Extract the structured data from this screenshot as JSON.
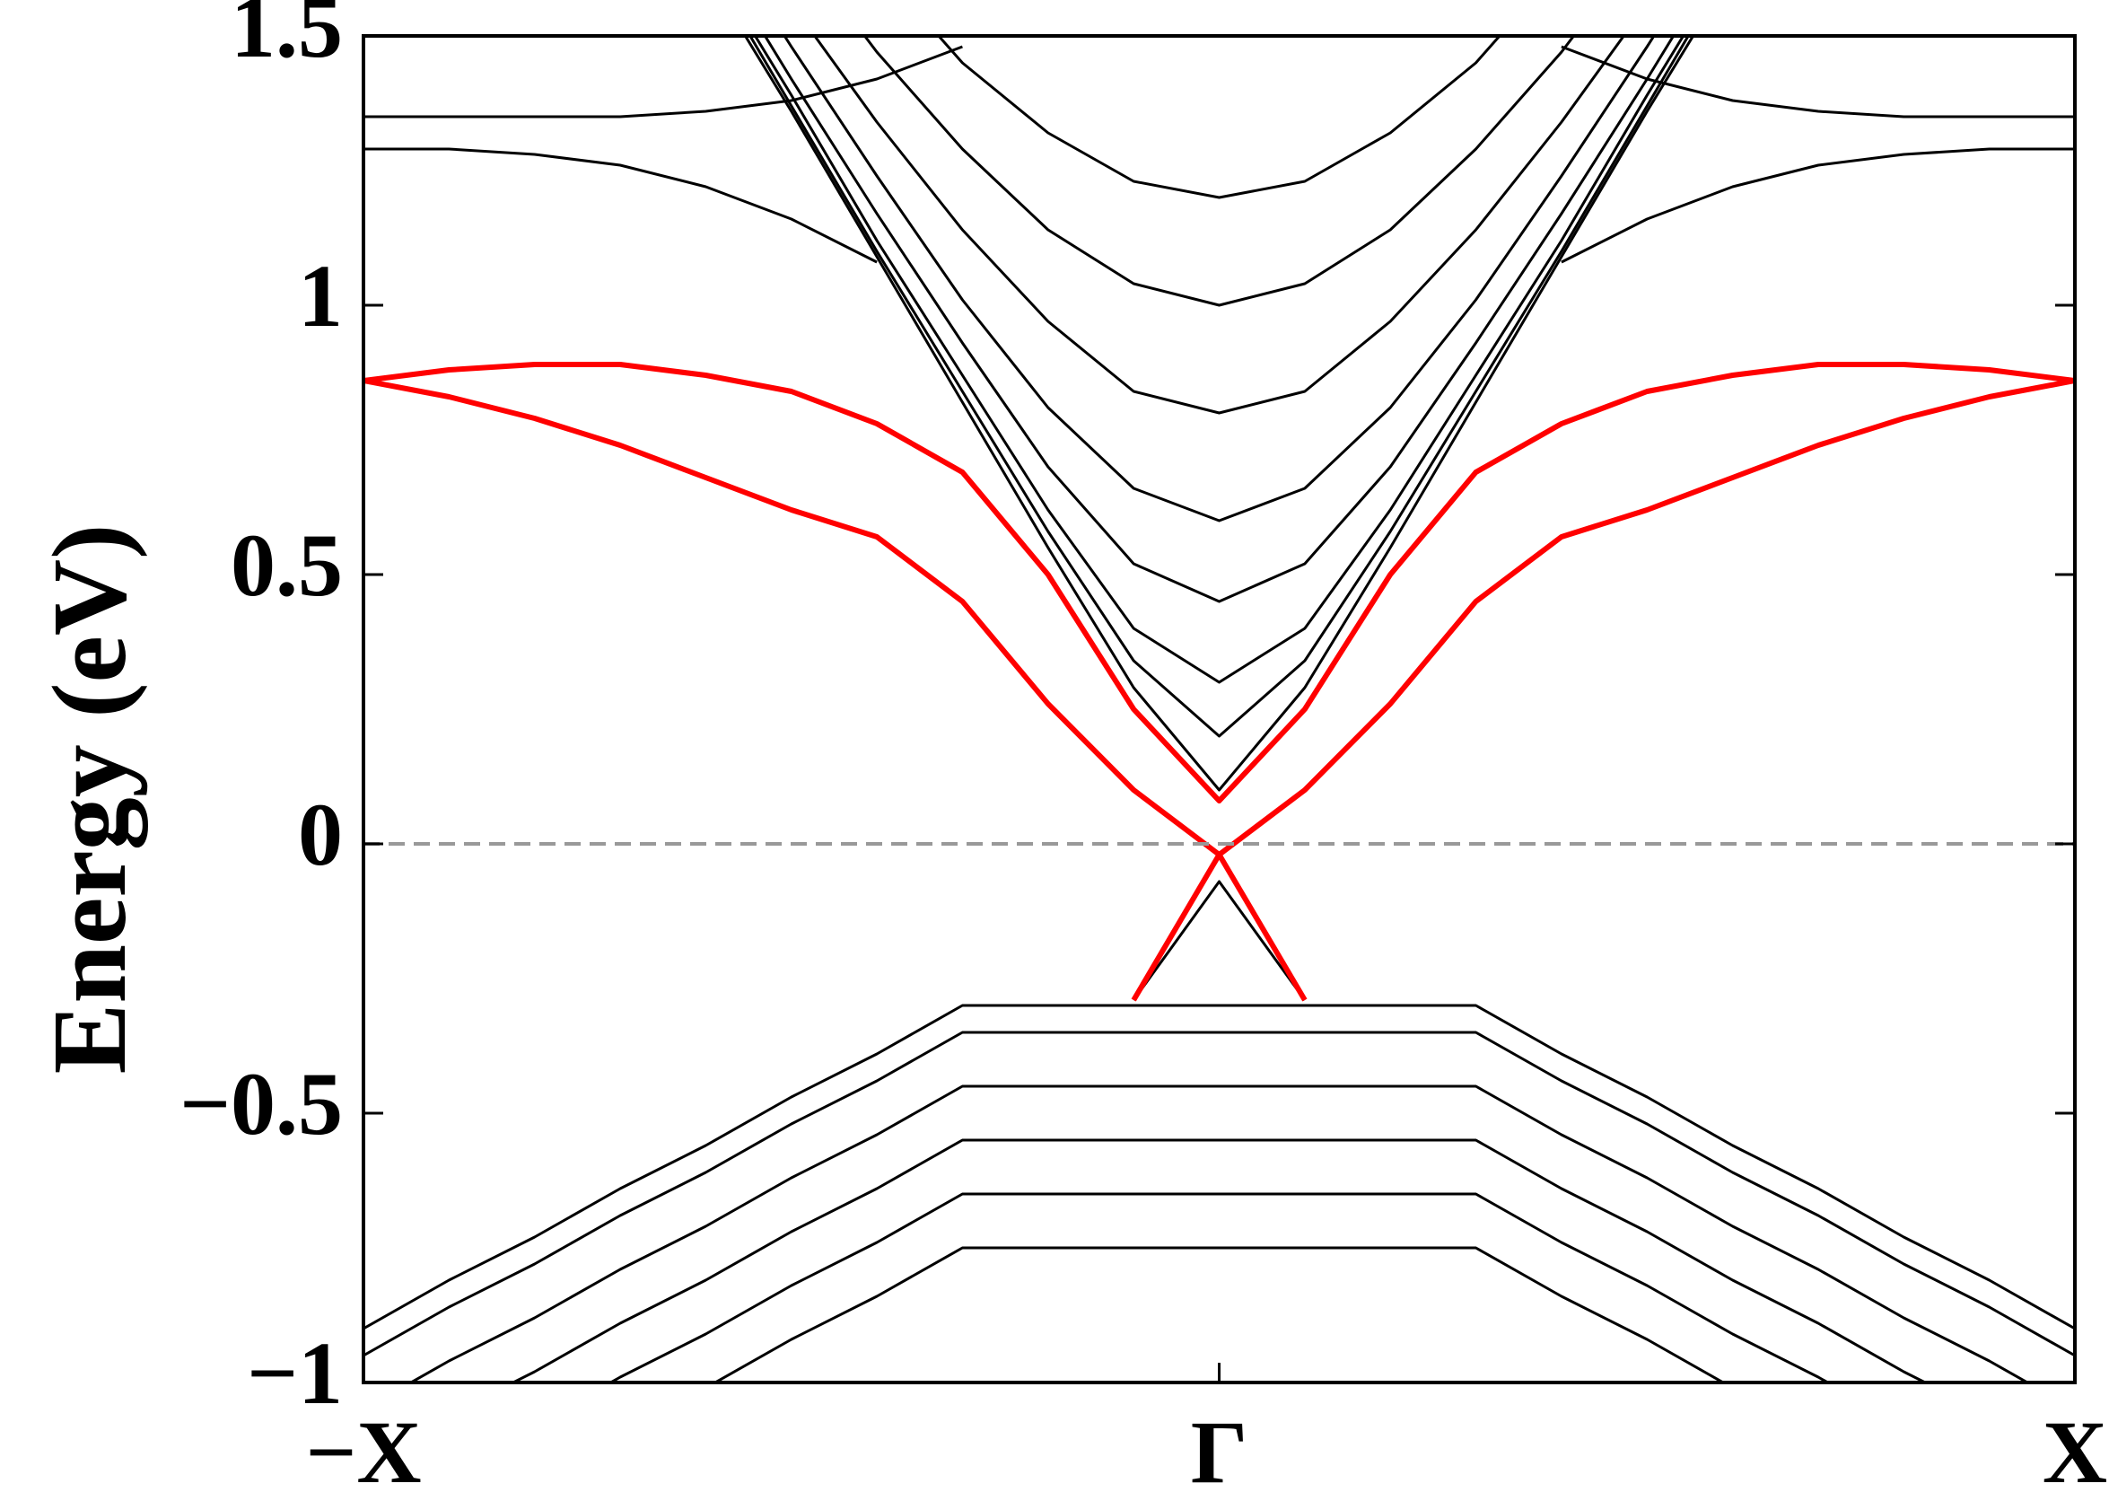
{
  "chart_data": {
    "type": "line",
    "y_label": "Energy (eV)",
    "x": [
      -1,
      -0.9,
      -0.8,
      -0.7,
      -0.6,
      -0.5,
      -0.4,
      -0.3,
      -0.2,
      -0.1,
      0,
      0.1,
      0.2,
      0.3,
      0.4,
      0.5,
      0.6,
      0.7,
      0.8,
      0.9,
      1
    ],
    "xlim": [
      -1,
      1
    ],
    "xticks": [
      {
        "value": -1,
        "label": "−X"
      },
      {
        "value": 0,
        "label": "Γ"
      },
      {
        "value": 1,
        "label": "X"
      }
    ],
    "ylim": [
      -1,
      1.5
    ],
    "yticks": [
      {
        "value": -1,
        "label": "−1"
      },
      {
        "value": -0.5,
        "label": "−0.5"
      },
      0,
      0.5,
      1,
      1.5
    ],
    "reference_line": 0,
    "reference_color": "#999999",
    "series": [
      {
        "color": "#000000",
        "values": [
          null,
          null,
          null,
          null,
          1.62,
          1.36,
          1.09,
          0.82,
          0.55,
          0.29,
          0.1,
          0.29,
          0.55,
          0.82,
          1.09,
          1.36,
          1.62,
          null,
          null,
          null,
          null
        ]
      },
      {
        "color": "#000000",
        "values": [
          null,
          null,
          null,
          null,
          1.64,
          1.37,
          1.1,
          0.84,
          0.58,
          0.34,
          0.2,
          0.34,
          0.58,
          0.84,
          1.1,
          1.37,
          1.64,
          null,
          null,
          null,
          null
        ]
      },
      {
        "color": "#000000",
        "values": [
          null,
          null,
          null,
          null,
          1.65,
          1.39,
          1.12,
          0.87,
          0.62,
          0.4,
          0.3,
          0.4,
          0.62,
          0.87,
          1.12,
          1.39,
          1.65,
          null,
          null,
          null,
          null
        ]
      },
      {
        "color": "#000000",
        "values": [
          null,
          null,
          null,
          null,
          1.68,
          1.42,
          1.17,
          0.93,
          0.7,
          0.52,
          0.45,
          0.52,
          0.7,
          0.93,
          1.17,
          1.42,
          1.68,
          null,
          null,
          null,
          null
        ]
      },
      {
        "color": "#000000",
        "values": [
          null,
          null,
          null,
          null,
          1.73,
          1.48,
          1.24,
          1.01,
          0.81,
          0.66,
          0.6,
          0.66,
          0.81,
          1.01,
          1.24,
          1.48,
          1.73,
          null,
          null,
          null,
          null
        ]
      },
      {
        "color": "#000000",
        "values": [
          null,
          null,
          null,
          null,
          null,
          1.56,
          1.34,
          1.14,
          0.97,
          0.84,
          0.8,
          0.84,
          0.97,
          1.14,
          1.34,
          1.56,
          null,
          null,
          null,
          null,
          null
        ]
      },
      {
        "color": "#000000",
        "values": [
          null,
          null,
          null,
          null,
          null,
          1.68,
          1.47,
          1.29,
          1.14,
          1.04,
          1,
          1.04,
          1.14,
          1.29,
          1.47,
          1.68,
          null,
          null,
          null,
          null,
          null
        ]
      },
      {
        "color": "#000000",
        "values": [
          null,
          null,
          null,
          null,
          null,
          null,
          1.63,
          1.45,
          1.32,
          1.23,
          1.2,
          1.23,
          1.32,
          1.45,
          1.63,
          null,
          null,
          null,
          null,
          null,
          null
        ]
      },
      {
        "color": "#000000",
        "values": [
          1.29,
          1.29,
          1.28,
          1.26,
          1.22,
          1.16,
          1.08,
          null,
          null,
          null,
          null,
          null,
          null,
          null,
          1.08,
          1.16,
          1.22,
          1.26,
          1.28,
          1.29,
          1.29
        ]
      },
      {
        "color": "#000000",
        "values": [
          1.35,
          1.35,
          1.35,
          1.35,
          1.36,
          1.38,
          1.42,
          1.48,
          null,
          null,
          null,
          null,
          null,
          null,
          1.48,
          1.42,
          1.38,
          1.36,
          1.35,
          1.35,
          1.35
        ]
      },
      {
        "color": "#000000",
        "values": [
          null,
          null,
          null,
          null,
          null,
          null,
          null,
          null,
          null,
          -0.29,
          -0.07,
          -0.29,
          null,
          null,
          null,
          null,
          null,
          null,
          null,
          null,
          null
        ]
      },
      {
        "color": "#000000",
        "values": [
          -0.9,
          -0.81,
          -0.73,
          -0.64,
          -0.56,
          -0.47,
          -0.39,
          -0.3,
          -0.3,
          -0.3,
          -0.3,
          -0.3,
          -0.3,
          -0.3,
          -0.39,
          -0.47,
          -0.56,
          -0.64,
          -0.73,
          -0.81,
          -0.9
        ]
      },
      {
        "color": "#000000",
        "values": [
          -0.95,
          -0.86,
          -0.78,
          -0.69,
          -0.61,
          -0.52,
          -0.44,
          -0.35,
          -0.35,
          -0.35,
          -0.35,
          -0.35,
          -0.35,
          -0.35,
          -0.44,
          -0.52,
          -0.61,
          -0.69,
          -0.78,
          -0.86,
          -0.95
        ]
      },
      {
        "color": "#000000",
        "values": [
          -1.05,
          -0.96,
          -0.88,
          -0.79,
          -0.71,
          -0.62,
          -0.54,
          -0.45,
          -0.45,
          -0.45,
          -0.45,
          -0.45,
          -0.45,
          -0.45,
          -0.54,
          -0.62,
          -0.71,
          -0.79,
          -0.88,
          -0.96,
          -1.05
        ]
      },
      {
        "color": "#000000",
        "values": [
          null,
          -1.06,
          -0.98,
          -0.89,
          -0.81,
          -0.72,
          -0.64,
          -0.55,
          -0.55,
          -0.55,
          -0.55,
          -0.55,
          -0.55,
          -0.55,
          -0.64,
          -0.72,
          -0.81,
          -0.89,
          -0.98,
          -1.06,
          null
        ]
      },
      {
        "color": "#000000",
        "values": [
          null,
          null,
          -1.08,
          -0.99,
          -0.91,
          -0.82,
          -0.74,
          -0.65,
          -0.65,
          -0.65,
          -0.65,
          -0.65,
          -0.65,
          -0.65,
          -0.74,
          -0.82,
          -0.91,
          -0.99,
          -1.08,
          null,
          null
        ]
      },
      {
        "color": "#000000",
        "values": [
          null,
          null,
          null,
          null,
          -1.01,
          -0.92,
          -0.84,
          -0.75,
          -0.75,
          -0.75,
          -0.75,
          -0.75,
          -0.75,
          -0.75,
          -0.84,
          -0.92,
          -1.01,
          null,
          null,
          null,
          null
        ]
      },
      {
        "color": "#ff0000",
        "values": [
          0.86,
          0.83,
          0.79,
          0.74,
          0.68,
          0.62,
          0.57,
          0.45,
          0.26,
          0.1,
          -0.02,
          -0.29,
          null,
          null,
          null,
          null,
          null,
          null,
          null,
          null,
          null
        ]
      },
      {
        "color": "#ff0000",
        "values": [
          null,
          null,
          null,
          null,
          null,
          null,
          null,
          null,
          null,
          -0.29,
          -0.02,
          0.1,
          0.26,
          0.45,
          0.57,
          0.62,
          0.68,
          0.74,
          0.79,
          0.83,
          0.86
        ]
      },
      {
        "color": "#ff0000",
        "values": [
          0.86,
          0.88,
          0.89,
          0.89,
          0.87,
          0.84,
          0.78,
          0.69,
          0.5,
          0.25,
          0.08,
          0.25,
          0.5,
          0.69,
          0.78,
          0.84,
          0.87,
          0.89,
          0.89,
          0.88,
          0.86
        ]
      }
    ]
  }
}
